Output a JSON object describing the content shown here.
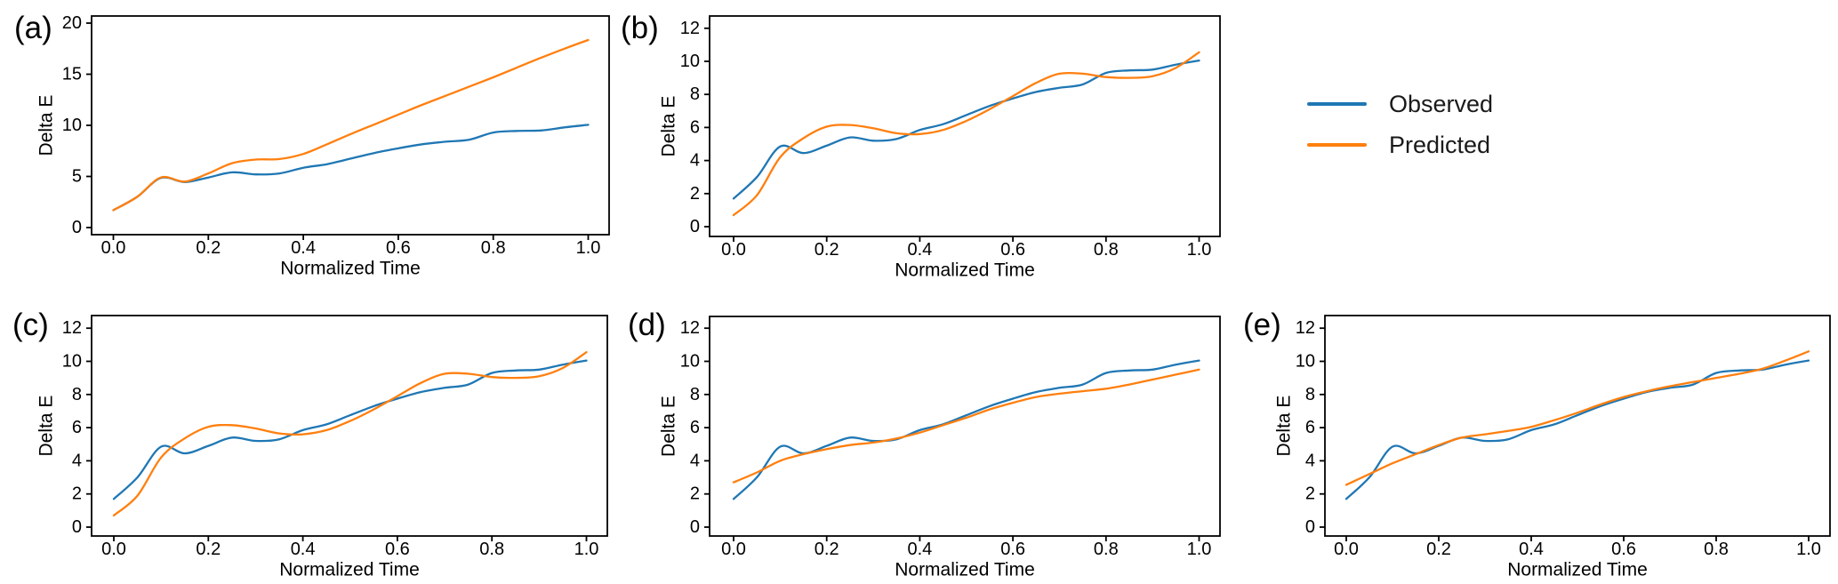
{
  "figure": {
    "legend": {
      "position": "figure-top-right",
      "items": [
        {
          "label": "Observed",
          "color": "#1f77b4"
        },
        {
          "label": "Predicted",
          "color": "#ff7f0e"
        }
      ]
    },
    "colors": {
      "observed": "#1f77b4",
      "predicted": "#ff7f0e",
      "axis": "#000000"
    }
  },
  "chart_data": [
    {
      "id": "a",
      "type": "line",
      "panel_label": "(a)",
      "xlabel": "Normalized Time",
      "ylabel": "Delta E",
      "xlim": [
        0,
        1
      ],
      "ylim": [
        0,
        20
      ],
      "grid": false,
      "xticks": [
        "0.0",
        "0.2",
        "0.4",
        "0.6",
        "0.8",
        "1.0"
      ],
      "yticks": [
        "0",
        "5",
        "10",
        "15",
        "20"
      ],
      "x": [
        0,
        0.05,
        0.1,
        0.15,
        0.2,
        0.25,
        0.3,
        0.35,
        0.4,
        0.45,
        0.5,
        0.55,
        0.6,
        0.65,
        0.7,
        0.75,
        0.8,
        0.85,
        0.9,
        0.95,
        1.0
      ],
      "series": [
        {
          "name": "Observed",
          "color": "#1f77b4",
          "values": [
            1.7,
            3.0,
            4.85,
            4.45,
            4.9,
            5.4,
            5.2,
            5.3,
            5.85,
            6.2,
            6.75,
            7.3,
            7.75,
            8.15,
            8.4,
            8.6,
            9.3,
            9.45,
            9.5,
            9.8,
            10.05
          ]
        },
        {
          "name": "Predicted",
          "color": "#ff7f0e",
          "values": [
            1.7,
            3.0,
            4.9,
            4.5,
            5.3,
            6.3,
            6.65,
            6.7,
            7.2,
            8.15,
            9.15,
            10.1,
            11.05,
            12.0,
            12.9,
            13.8,
            14.7,
            15.65,
            16.6,
            17.5,
            18.35
          ]
        }
      ]
    },
    {
      "id": "b",
      "type": "line",
      "panel_label": "(b)",
      "xlabel": "Normalized Time",
      "ylabel": "Delta E",
      "xlim": [
        0,
        1
      ],
      "ylim": [
        0,
        12
      ],
      "grid": false,
      "xticks": [
        "0.0",
        "0.2",
        "0.4",
        "0.6",
        "0.8",
        "1.0"
      ],
      "yticks": [
        "0",
        "2",
        "4",
        "6",
        "8",
        "10",
        "12"
      ],
      "x": [
        0,
        0.05,
        0.1,
        0.15,
        0.2,
        0.25,
        0.3,
        0.35,
        0.4,
        0.45,
        0.5,
        0.55,
        0.6,
        0.65,
        0.7,
        0.75,
        0.8,
        0.85,
        0.9,
        0.95,
        1.0
      ],
      "series": [
        {
          "name": "Observed",
          "color": "#1f77b4",
          "values": [
            1.7,
            3.0,
            4.85,
            4.45,
            4.9,
            5.4,
            5.2,
            5.3,
            5.85,
            6.2,
            6.75,
            7.3,
            7.75,
            8.15,
            8.4,
            8.6,
            9.3,
            9.45,
            9.5,
            9.8,
            10.05
          ]
        },
        {
          "name": "Predicted",
          "color": "#ff7f0e",
          "values": [
            0.7,
            1.9,
            4.2,
            5.35,
            6.05,
            6.15,
            5.95,
            5.65,
            5.6,
            5.85,
            6.4,
            7.1,
            7.9,
            8.7,
            9.25,
            9.25,
            9.05,
            9.0,
            9.1,
            9.6,
            10.55
          ]
        }
      ]
    },
    {
      "id": "c",
      "type": "line",
      "panel_label": "(c)",
      "xlabel": "Normalized Time",
      "ylabel": "Delta E",
      "xlim": [
        0,
        1
      ],
      "ylim": [
        0,
        12
      ],
      "grid": false,
      "xticks": [
        "0.0",
        "0.2",
        "0.4",
        "0.6",
        "0.8",
        "1.0"
      ],
      "yticks": [
        "0",
        "2",
        "4",
        "6",
        "8",
        "10",
        "12"
      ],
      "x": [
        0,
        0.05,
        0.1,
        0.15,
        0.2,
        0.25,
        0.3,
        0.35,
        0.4,
        0.45,
        0.5,
        0.55,
        0.6,
        0.65,
        0.7,
        0.75,
        0.8,
        0.85,
        0.9,
        0.95,
        1.0
      ],
      "series": [
        {
          "name": "Observed",
          "color": "#1f77b4",
          "values": [
            1.7,
            3.0,
            4.85,
            4.45,
            4.9,
            5.4,
            5.2,
            5.3,
            5.85,
            6.2,
            6.75,
            7.3,
            7.75,
            8.15,
            8.4,
            8.6,
            9.3,
            9.45,
            9.5,
            9.8,
            10.05
          ]
        },
        {
          "name": "Predicted",
          "color": "#ff7f0e",
          "values": [
            0.7,
            1.9,
            4.2,
            5.35,
            6.05,
            6.15,
            5.95,
            5.65,
            5.6,
            5.85,
            6.4,
            7.1,
            7.9,
            8.7,
            9.25,
            9.25,
            9.05,
            9.0,
            9.1,
            9.6,
            10.55
          ]
        }
      ]
    },
    {
      "id": "d",
      "type": "line",
      "panel_label": "(d)",
      "xlabel": "Normalized Time",
      "ylabel": "Delta E",
      "xlim": [
        0,
        1
      ],
      "ylim": [
        0,
        12
      ],
      "grid": false,
      "xticks": [
        "0.0",
        "0.2",
        "0.4",
        "0.6",
        "0.8",
        "1.0"
      ],
      "yticks": [
        "0",
        "2",
        "4",
        "6",
        "8",
        "10",
        "12"
      ],
      "x": [
        0,
        0.05,
        0.1,
        0.15,
        0.2,
        0.25,
        0.3,
        0.35,
        0.4,
        0.45,
        0.5,
        0.55,
        0.6,
        0.65,
        0.7,
        0.75,
        0.8,
        0.85,
        0.9,
        0.95,
        1.0
      ],
      "series": [
        {
          "name": "Observed",
          "color": "#1f77b4",
          "values": [
            1.7,
            3.0,
            4.85,
            4.45,
            4.9,
            5.4,
            5.2,
            5.3,
            5.85,
            6.2,
            6.75,
            7.3,
            7.75,
            8.15,
            8.4,
            8.6,
            9.3,
            9.45,
            9.5,
            9.8,
            10.05
          ]
        },
        {
          "name": "Predicted",
          "color": "#ff7f0e",
          "values": [
            2.7,
            3.3,
            4.0,
            4.4,
            4.7,
            4.95,
            5.1,
            5.35,
            5.7,
            6.15,
            6.6,
            7.1,
            7.5,
            7.85,
            8.05,
            8.2,
            8.35,
            8.6,
            8.9,
            9.2,
            9.5
          ]
        }
      ]
    },
    {
      "id": "e",
      "type": "line",
      "panel_label": "(e)",
      "xlabel": "Normalized Time",
      "ylabel": "Delta E",
      "xlim": [
        0,
        1
      ],
      "ylim": [
        0,
        12
      ],
      "grid": false,
      "xticks": [
        "0.0",
        "0.2",
        "0.4",
        "0.6",
        "0.8",
        "1.0"
      ],
      "yticks": [
        "0",
        "2",
        "4",
        "6",
        "8",
        "10",
        "12"
      ],
      "x": [
        0,
        0.05,
        0.1,
        0.15,
        0.2,
        0.25,
        0.3,
        0.35,
        0.4,
        0.45,
        0.5,
        0.55,
        0.6,
        0.65,
        0.7,
        0.75,
        0.8,
        0.85,
        0.9,
        0.95,
        1.0
      ],
      "series": [
        {
          "name": "Observed",
          "color": "#1f77b4",
          "values": [
            1.7,
            3.0,
            4.85,
            4.45,
            4.9,
            5.4,
            5.2,
            5.3,
            5.85,
            6.2,
            6.75,
            7.3,
            7.75,
            8.15,
            8.4,
            8.6,
            9.3,
            9.45,
            9.5,
            9.8,
            10.05
          ]
        },
        {
          "name": "Predicted",
          "color": "#ff7f0e",
          "values": [
            2.55,
            3.2,
            3.85,
            4.4,
            4.95,
            5.4,
            5.6,
            5.8,
            6.05,
            6.45,
            6.9,
            7.4,
            7.85,
            8.2,
            8.5,
            8.75,
            9.0,
            9.25,
            9.55,
            10.05,
            10.6
          ]
        }
      ]
    }
  ]
}
